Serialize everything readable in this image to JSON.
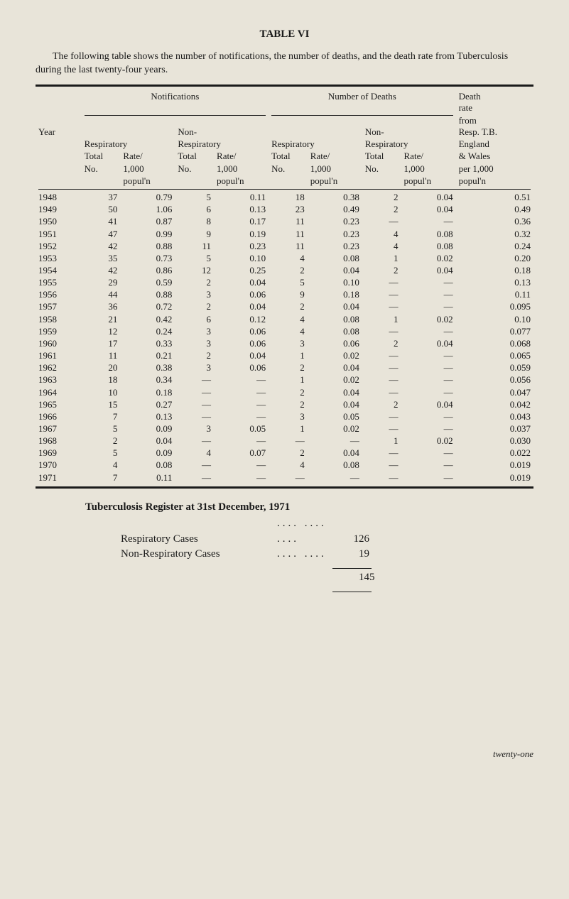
{
  "title": "TABLE VI",
  "intro": "The following table shows the number of notifications, the number of deaths, and the death rate from Tuberculosis during the last twenty-four years.",
  "headers": {
    "notifications": "Notifications",
    "deaths": "Number of Deaths",
    "death_rate": "Death rate from Resp. T.B. England & Wales per 1,000 popul'n",
    "year": "Year",
    "respiratory": "Respiratory",
    "non_respiratory": "Non-Respiratory",
    "total_no": "Total No.",
    "rate": "Rate/ 1,000 popul'n"
  },
  "rows": [
    {
      "year": "1948",
      "rn": "37",
      "rr": "0.79",
      "nn": "5",
      "nr": "0.11",
      "drn": "18",
      "drr": "0.38",
      "dnn": "2",
      "dnr": "0.04",
      "dr": "0.51"
    },
    {
      "year": "1949",
      "rn": "50",
      "rr": "1.06",
      "nn": "6",
      "nr": "0.13",
      "drn": "23",
      "drr": "0.49",
      "dnn": "2",
      "dnr": "0.04",
      "dr": "0.49"
    },
    {
      "year": "1950",
      "rn": "41",
      "rr": "0.87",
      "nn": "8",
      "nr": "0.17",
      "drn": "11",
      "drr": "0.23",
      "dnn": "—",
      "dnr": "—",
      "dr": "0.36"
    },
    {
      "year": "1951",
      "rn": "47",
      "rr": "0.99",
      "nn": "9",
      "nr": "0.19",
      "drn": "11",
      "drr": "0.23",
      "dnn": "4",
      "dnr": "0.08",
      "dr": "0.32"
    },
    {
      "year": "1952",
      "rn": "42",
      "rr": "0.88",
      "nn": "11",
      "nr": "0.23",
      "drn": "11",
      "drr": "0.23",
      "dnn": "4",
      "dnr": "0.08",
      "dr": "0.24"
    },
    {
      "year": "1953",
      "rn": "35",
      "rr": "0.73",
      "nn": "5",
      "nr": "0.10",
      "drn": "4",
      "drr": "0.08",
      "dnn": "1",
      "dnr": "0.02",
      "dr": "0.20"
    },
    {
      "year": "1954",
      "rn": "42",
      "rr": "0.86",
      "nn": "12",
      "nr": "0.25",
      "drn": "2",
      "drr": "0.04",
      "dnn": "2",
      "dnr": "0.04",
      "dr": "0.18"
    },
    {
      "year": "1955",
      "rn": "29",
      "rr": "0.59",
      "nn": "2",
      "nr": "0.04",
      "drn": "5",
      "drr": "0.10",
      "dnn": "—",
      "dnr": "—",
      "dr": "0.13"
    },
    {
      "year": "1956",
      "rn": "44",
      "rr": "0.88",
      "nn": "3",
      "nr": "0.06",
      "drn": "9",
      "drr": "0.18",
      "dnn": "—",
      "dnr": "—",
      "dr": "0.11"
    },
    {
      "year": "1957",
      "rn": "36",
      "rr": "0.72",
      "nn": "2",
      "nr": "0.04",
      "drn": "2",
      "drr": "0.04",
      "dnn": "—",
      "dnr": "—",
      "dr": "0.095"
    },
    {
      "year": "1958",
      "rn": "21",
      "rr": "0.42",
      "nn": "6",
      "nr": "0.12",
      "drn": "4",
      "drr": "0.08",
      "dnn": "1",
      "dnr": "0.02",
      "dr": "0.10"
    },
    {
      "year": "1959",
      "rn": "12",
      "rr": "0.24",
      "nn": "3",
      "nr": "0.06",
      "drn": "4",
      "drr": "0.08",
      "dnn": "—",
      "dnr": "—",
      "dr": "0.077"
    },
    {
      "year": "1960",
      "rn": "17",
      "rr": "0.33",
      "nn": "3",
      "nr": "0.06",
      "drn": "3",
      "drr": "0.06",
      "dnn": "2",
      "dnr": "0.04",
      "dr": "0.068"
    },
    {
      "year": "1961",
      "rn": "11",
      "rr": "0.21",
      "nn": "2",
      "nr": "0.04",
      "drn": "1",
      "drr": "0.02",
      "dnn": "—",
      "dnr": "—",
      "dr": "0.065"
    },
    {
      "year": "1962",
      "rn": "20",
      "rr": "0.38",
      "nn": "3",
      "nr": "0.06",
      "drn": "2",
      "drr": "0.04",
      "dnn": "—",
      "dnr": "—",
      "dr": "0.059"
    },
    {
      "year": "1963",
      "rn": "18",
      "rr": "0.34",
      "nn": "—",
      "nr": "—",
      "drn": "1",
      "drr": "0.02",
      "dnn": "—",
      "dnr": "—",
      "dr": "0.056"
    },
    {
      "year": "1964",
      "rn": "10",
      "rr": "0.18",
      "nn": "—",
      "nr": "—",
      "drn": "2",
      "drr": "0.04",
      "dnn": "—",
      "dnr": "—",
      "dr": "0.047"
    },
    {
      "year": "1965",
      "rn": "15",
      "rr": "0.27",
      "nn": "—",
      "nr": "—",
      "drn": "2",
      "drr": "0.04",
      "dnn": "2",
      "dnr": "0.04",
      "dr": "0.042"
    },
    {
      "year": "1966",
      "rn": "7",
      "rr": "0.13",
      "nn": "—",
      "nr": "—",
      "drn": "3",
      "drr": "0.05",
      "dnn": "—",
      "dnr": "—",
      "dr": "0.043"
    },
    {
      "year": "1967",
      "rn": "5",
      "rr": "0.09",
      "nn": "3",
      "nr": "0.05",
      "drn": "1",
      "drr": "0.02",
      "dnn": "—",
      "dnr": "—",
      "dr": "0.037"
    },
    {
      "year": "1968",
      "rn": "2",
      "rr": "0.04",
      "nn": "—",
      "nr": "—",
      "drn": "—",
      "drr": "—",
      "dnn": "1",
      "dnr": "0.02",
      "dr": "0.030"
    },
    {
      "year": "1969",
      "rn": "5",
      "rr": "0.09",
      "nn": "4",
      "nr": "0.07",
      "drn": "2",
      "drr": "0.04",
      "dnn": "—",
      "dnr": "—",
      "dr": "0.022"
    },
    {
      "year": "1970",
      "rn": "4",
      "rr": "0.08",
      "nn": "—",
      "nr": "—",
      "drn": "4",
      "drr": "0.08",
      "dnn": "—",
      "dnr": "—",
      "dr": "0.019"
    },
    {
      "year": "1971",
      "rn": "7",
      "rr": "0.11",
      "nn": "—",
      "nr": "—",
      "drn": "—",
      "drr": "—",
      "dnn": "—",
      "dnr": "—",
      "dr": "0.019"
    }
  ],
  "register": {
    "title": "Tuberculosis Register at 31st December, 1971",
    "lines": [
      {
        "label": "Respiratory Cases",
        "dots": ".... .... ....",
        "value": "126"
      },
      {
        "label": "Non-Respiratory Cases",
        "dots": ".... ....",
        "value": "19"
      }
    ],
    "total": "145"
  },
  "footer": "twenty-one",
  "colors": {
    "background": "#e8e4d9",
    "text": "#1a1a1a"
  }
}
